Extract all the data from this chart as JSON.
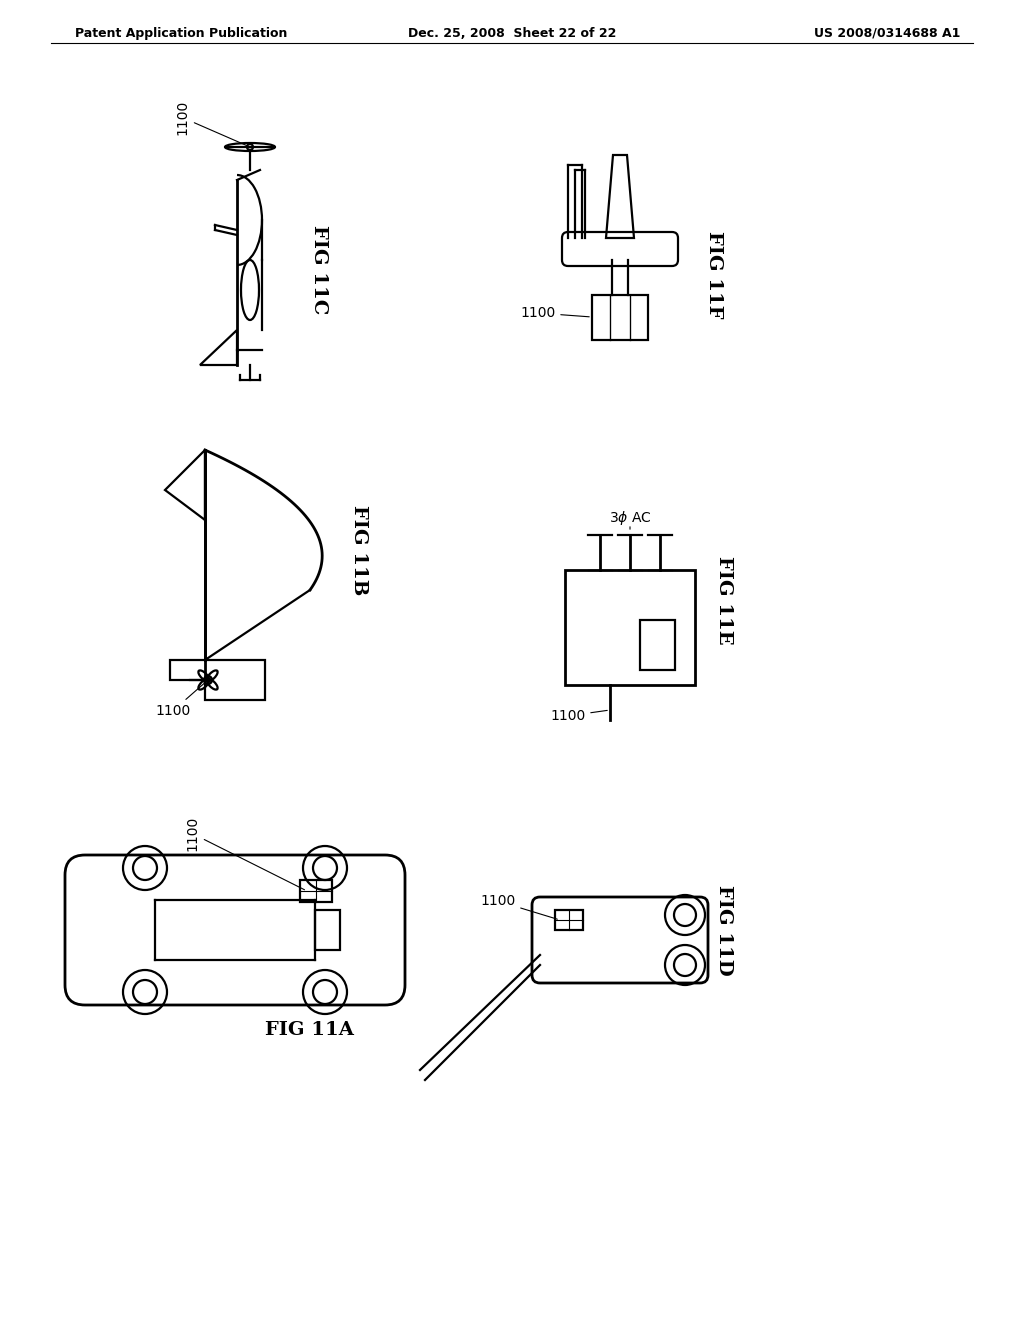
{
  "bg_color": "#ffffff",
  "header_left": "Patent Application Publication",
  "header_mid": "Dec. 25, 2008  Sheet 22 of 22",
  "header_right": "US 2008/0314688 A1",
  "lw": 1.6,
  "black": "#000000"
}
